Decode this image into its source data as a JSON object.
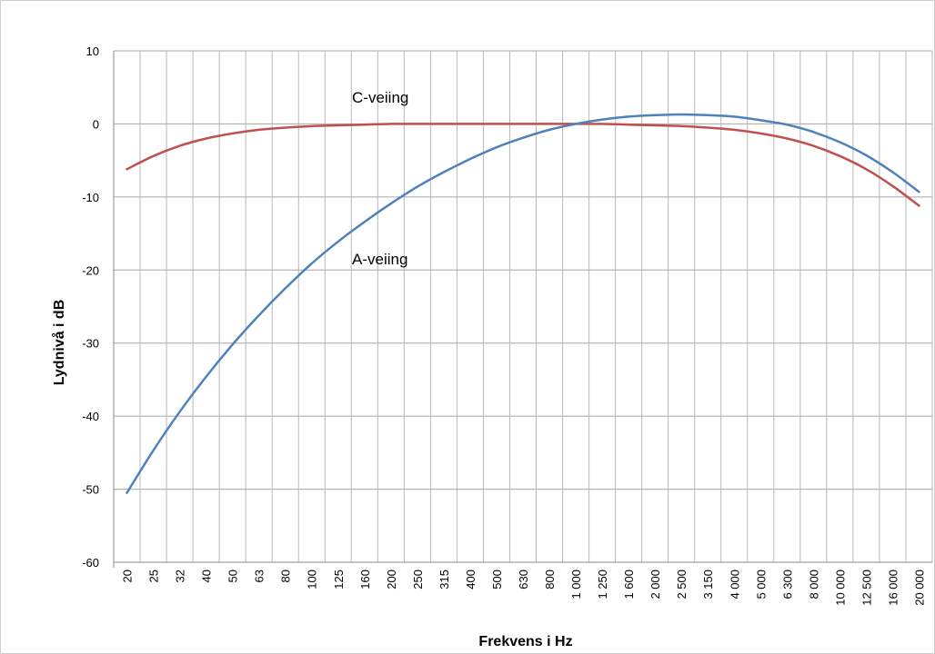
{
  "chart_data": {
    "type": "line",
    "title": "",
    "xlabel": "Frekvens i Hz",
    "ylabel": "Lydnivå i dB",
    "ylim": [
      -60,
      10
    ],
    "y_ticks": [
      "10",
      "0",
      "-10",
      "-20",
      "-30",
      "-40",
      "-50",
      "-60"
    ],
    "y_tick_values": [
      10,
      0,
      -10,
      -20,
      -30,
      -40,
      -50,
      -60
    ],
    "grid": true,
    "legend": "none",
    "categories": [
      "20",
      "25",
      "32",
      "40",
      "50",
      "63",
      "80",
      "100",
      "125",
      "160",
      "200",
      "250",
      "315",
      "400",
      "500",
      "630",
      "800",
      "1 000",
      "1 250",
      "1 600",
      "2 000",
      "2 500",
      "3 150",
      "4 000",
      "5 000",
      "6 300",
      "8 000",
      "10 000",
      "12 500",
      "16 000",
      "20 000"
    ],
    "series": [
      {
        "name": "C-veiing",
        "color": "#c0504d",
        "values": [
          -6.2,
          -4.4,
          -3.0,
          -2.0,
          -1.3,
          -0.8,
          -0.5,
          -0.3,
          -0.2,
          -0.1,
          0.0,
          0.0,
          0.0,
          0.0,
          0.0,
          0.0,
          0.0,
          0.0,
          0.0,
          -0.1,
          -0.2,
          -0.3,
          -0.5,
          -0.8,
          -1.3,
          -2.0,
          -3.0,
          -4.4,
          -6.2,
          -8.5,
          -11.2
        ]
      },
      {
        "name": "A-veiing",
        "color": "#4f81bd",
        "values": [
          -50.5,
          -44.7,
          -39.4,
          -34.6,
          -30.2,
          -26.2,
          -22.5,
          -19.1,
          -16.1,
          -13.4,
          -10.9,
          -8.6,
          -6.6,
          -4.8,
          -3.2,
          -1.9,
          -0.8,
          0.0,
          0.6,
          1.0,
          1.2,
          1.3,
          1.2,
          1.0,
          0.5,
          -0.1,
          -1.1,
          -2.5,
          -4.3,
          -6.6,
          -9.3
        ]
      }
    ],
    "annotations": [
      {
        "text": "C-veiing",
        "series": "C-veiing"
      },
      {
        "text": "A-veiing",
        "series": "A-veiing"
      }
    ]
  }
}
